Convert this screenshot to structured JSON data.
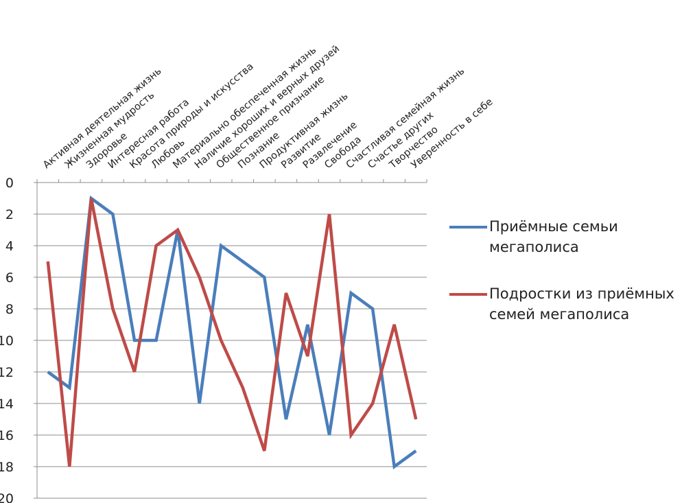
{
  "chart_data": {
    "type": "line",
    "title": "",
    "xlabel": "",
    "ylabel": "",
    "ylim": [
      0,
      20
    ],
    "y_reversed": true,
    "y_ticks": [
      0,
      2,
      4,
      6,
      8,
      10,
      12,
      14,
      16,
      18,
      20
    ],
    "grid": "horizontal",
    "legend_position": "right",
    "categories": [
      "Активная деятельная жизнь",
      "Жизненная мудрость",
      "Здоровье",
      "Интересная работа",
      "Красота природы и искусства",
      "Любовь",
      "Материально обеспеченная жизнь",
      "Наличие хороших и верных друзей",
      "Общественное признание",
      "Познание",
      "Продуктивная жизнь",
      "Развитие",
      "Развлечение",
      "Свобода",
      "Счастливая семейная жизнь",
      "Счастье других",
      "Творчество",
      "Уверенность в себе"
    ],
    "series": [
      {
        "name": "Приёмные семьи мегаполиса",
        "color": "#4a7ebb",
        "values": [
          12,
          13,
          1,
          2,
          10,
          10,
          3,
          14,
          4,
          5,
          6,
          15,
          9,
          16,
          7,
          8,
          18,
          17
        ]
      },
      {
        "name": "Подростки из приёмных семей мегаполиса",
        "color": "#be4b48",
        "values": [
          5,
          18,
          1,
          8,
          12,
          4,
          3,
          6,
          10,
          13,
          17,
          7,
          11,
          2,
          16,
          14,
          9,
          15
        ]
      }
    ]
  },
  "legend": {
    "items": [
      {
        "line1": "Приёмные семьи",
        "line2": "мегаполиса"
      },
      {
        "line1": "Подростки из приёмных",
        "line2": "семей мегаполиса"
      }
    ]
  }
}
